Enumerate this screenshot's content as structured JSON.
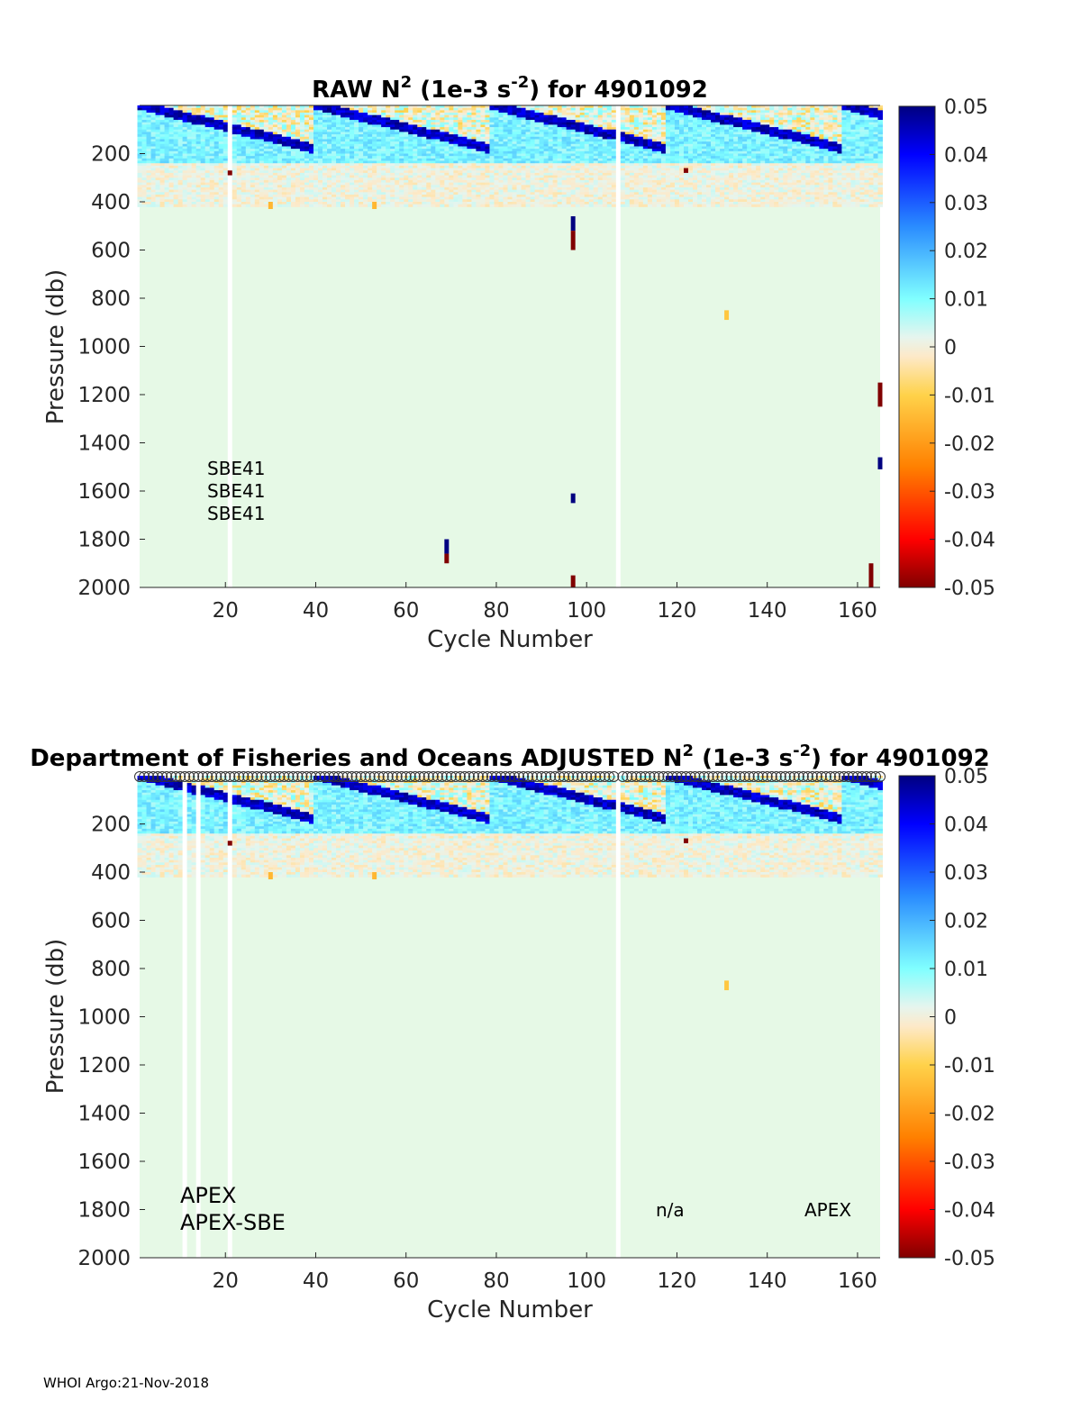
{
  "footer": "WHOI Argo:21-Nov-2018",
  "colorbar": {
    "ticks": [
      "0.05",
      "0.04",
      "0.03",
      "0.02",
      "0.01",
      "0",
      "-0.01",
      "-0.02",
      "-0.03",
      "-0.04",
      "-0.05"
    ],
    "range": [
      -0.05,
      0.05
    ]
  },
  "chart_data": [
    {
      "type": "heatmap",
      "title_prefix": "RAW N",
      "title_sup1": "2",
      "title_mid": " (1e-3 s",
      "title_sup2": "-2",
      "title_suffix": ") for 4901092",
      "xlabel": "Cycle Number",
      "ylabel": "Pressure (db)",
      "xlim": [
        1,
        165
      ],
      "ylim": [
        2000,
        0
      ],
      "xticks": [
        "20",
        "40",
        "60",
        "80",
        "100",
        "120",
        "140",
        "160"
      ],
      "yticks": [
        "200",
        "400",
        "600",
        "800",
        "1000",
        "1200",
        "1400",
        "1600",
        "1800",
        "2000"
      ],
      "annotations": [
        "SBE41",
        "SBE41",
        "SBE41"
      ],
      "missing_cycles": [
        21,
        107
      ],
      "features": {
        "surface_stratified_layer_db": [
          0,
          150
        ],
        "value_range": [
          -0.05,
          0.05
        ]
      }
    },
    {
      "type": "heatmap",
      "title_prefix": "Department of Fisheries and Oceans  ADJUSTED N",
      "title_sup1": "2",
      "title_mid": " (1e-3 s",
      "title_sup2": "-2",
      "title_suffix": ") for 4901092",
      "xlabel": "Cycle Number",
      "ylabel": "Pressure (db)",
      "xlim": [
        1,
        165
      ],
      "ylim": [
        2000,
        0
      ],
      "xticks": [
        "20",
        "40",
        "60",
        "80",
        "100",
        "120",
        "140",
        "160"
      ],
      "yticks": [
        "200",
        "400",
        "600",
        "800",
        "1000",
        "1200",
        "1400",
        "1600",
        "1800",
        "2000"
      ],
      "annotations": [
        "APEX",
        "APEX-SBE",
        "n/a",
        "APEX"
      ],
      "missing_cycles": [
        11,
        14,
        21,
        107
      ],
      "features": {
        "surface_stratified_layer_db": [
          0,
          150
        ],
        "value_range": [
          -0.05,
          0.05
        ]
      }
    }
  ]
}
